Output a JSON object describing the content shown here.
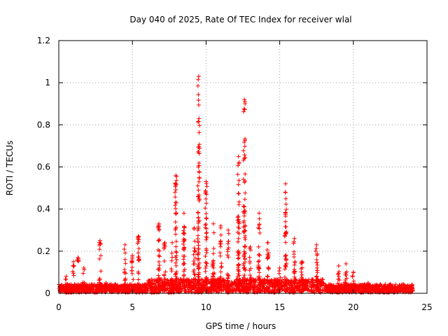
{
  "chart_data": {
    "type": "scatter",
    "title": "Day 040 of 2025, Rate Of TEC Index for receiver wlal",
    "xlabel": "GPS time / hours",
    "ylabel": "ROTI / TECUs",
    "xlim": [
      0,
      25
    ],
    "ylim": [
      0,
      1.2
    ],
    "xticks": [
      0,
      5,
      10,
      15,
      20,
      25
    ],
    "yticks": [
      0,
      0.2,
      0.4,
      0.6,
      0.8,
      1,
      1.2
    ],
    "xtick_labels": [
      "0",
      "5",
      "10",
      "15",
      "20",
      "25"
    ],
    "ytick_labels": [
      "0",
      "0.2",
      "0.4",
      "0.6",
      "0.8",
      "1",
      "1.2"
    ],
    "grid": true,
    "marker": "+",
    "color": "#ff0000",
    "series": [
      {
        "name": "ROTI",
        "x_range": [
          0,
          24
        ],
        "baseline": 0.02,
        "peaks": [
          {
            "x": 0.5,
            "y": 0.08
          },
          {
            "x": 1.0,
            "y": 0.15
          },
          {
            "x": 1.3,
            "y": 0.17
          },
          {
            "x": 1.7,
            "y": 0.12
          },
          {
            "x": 2.8,
            "y": 0.25
          },
          {
            "x": 3.2,
            "y": 0.05
          },
          {
            "x": 4.5,
            "y": 0.23
          },
          {
            "x": 5.0,
            "y": 0.18
          },
          {
            "x": 5.4,
            "y": 0.27
          },
          {
            "x": 6.8,
            "y": 0.33
          },
          {
            "x": 7.2,
            "y": 0.24
          },
          {
            "x": 7.7,
            "y": 0.24
          },
          {
            "x": 7.95,
            "y": 0.56
          },
          {
            "x": 8.5,
            "y": 0.38
          },
          {
            "x": 9.2,
            "y": 0.31
          },
          {
            "x": 9.5,
            "y": 1.03
          },
          {
            "x": 10.0,
            "y": 0.53
          },
          {
            "x": 10.5,
            "y": 0.33
          },
          {
            "x": 11.0,
            "y": 0.32
          },
          {
            "x": 11.5,
            "y": 0.3
          },
          {
            "x": 12.2,
            "y": 0.65
          },
          {
            "x": 12.6,
            "y": 0.92
          },
          {
            "x": 13.0,
            "y": 0.22
          },
          {
            "x": 13.6,
            "y": 0.38
          },
          {
            "x": 14.2,
            "y": 0.24
          },
          {
            "x": 15.0,
            "y": 0.12
          },
          {
            "x": 15.4,
            "y": 0.52
          },
          {
            "x": 16.0,
            "y": 0.26
          },
          {
            "x": 16.5,
            "y": 0.15
          },
          {
            "x": 17.5,
            "y": 0.23
          },
          {
            "x": 18.5,
            "y": 0.04
          },
          {
            "x": 19.0,
            "y": 0.13
          },
          {
            "x": 19.5,
            "y": 0.14
          },
          {
            "x": 20.0,
            "y": 0.1
          },
          {
            "x": 21.0,
            "y": 0.05
          },
          {
            "x": 22.5,
            "y": 0.04
          },
          {
            "x": 24.0,
            "y": 0.04
          }
        ]
      }
    ]
  }
}
